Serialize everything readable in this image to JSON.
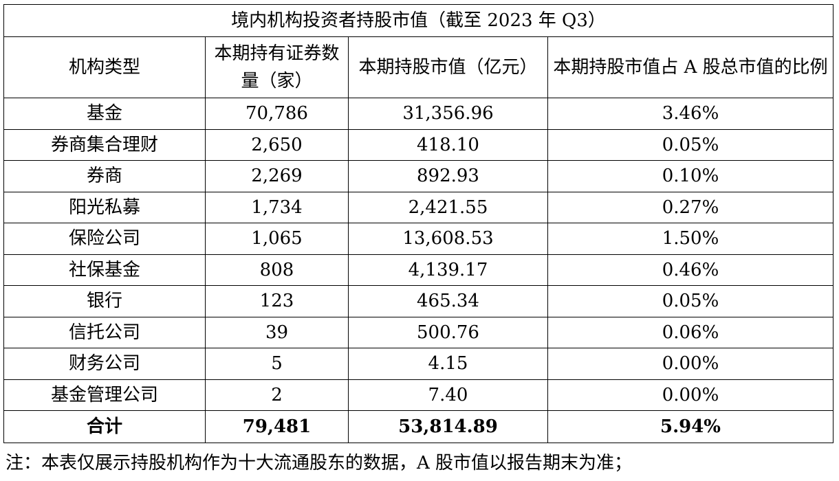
{
  "table": {
    "title": "境内机构投资者持股市值（截至 2023 年 Q3）",
    "headers": [
      "机构类型",
      "本期持有证券数量（家）",
      "本期持股市值（亿元）",
      "本期持股市值占 A 股总市值的比例"
    ],
    "rows": [
      {
        "type": "基金",
        "count": "70,786",
        "value": "31,356.96",
        "ratio": "3.46%"
      },
      {
        "type": "券商集合理财",
        "count": "2,650",
        "value": "418.10",
        "ratio": "0.05%"
      },
      {
        "type": "券商",
        "count": "2,269",
        "value": "892.93",
        "ratio": "0.10%"
      },
      {
        "type": "阳光私募",
        "count": "1,734",
        "value": "2,421.55",
        "ratio": "0.27%"
      },
      {
        "type": "保险公司",
        "count": "1,065",
        "value": "13,608.53",
        "ratio": "1.50%"
      },
      {
        "type": "社保基金",
        "count": "808",
        "value": "4,139.17",
        "ratio": "0.46%"
      },
      {
        "type": "银行",
        "count": "123",
        "value": "465.34",
        "ratio": "0.05%"
      },
      {
        "type": "信托公司",
        "count": "39",
        "value": "500.76",
        "ratio": "0.06%"
      },
      {
        "type": "财务公司",
        "count": "5",
        "value": "4.15",
        "ratio": "0.00%"
      },
      {
        "type": "基金管理公司",
        "count": "2",
        "value": "7.40",
        "ratio": "0.00%"
      }
    ],
    "total": {
      "type": "合计",
      "count": "79,481",
      "value": "53,814.89",
      "ratio": "5.94%"
    }
  },
  "note": "注：本表仅展示持股机构作为十大流通股东的数据，A 股市值以报告期末为准；"
}
